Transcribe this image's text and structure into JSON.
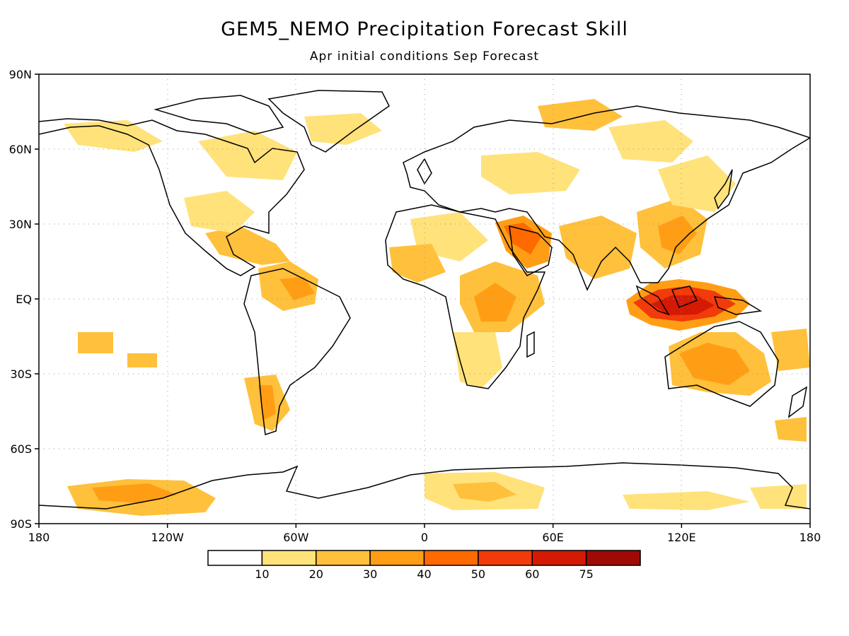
{
  "title": "GEM5_NEMO Precipitation Forecast Skill",
  "subtitle": "Apr initial conditions   Sep Forecast",
  "map": {
    "lat_labels": [
      "90N",
      "60N",
      "30N",
      "EQ",
      "30S",
      "60S",
      "90S"
    ],
    "lat_values": [
      90,
      60,
      30,
      0,
      -30,
      -60,
      -90
    ],
    "lon_labels": [
      "180",
      "120W",
      "60W",
      "0",
      "60E",
      "120E",
      "180"
    ],
    "lon_values": [
      -180,
      -120,
      -60,
      0,
      60,
      120,
      180
    ],
    "lon_range": [
      -180,
      180
    ],
    "lat_range": [
      -90,
      90
    ],
    "projection": "equirectangular",
    "grid": "dotted"
  },
  "colorbar": {
    "thresholds": [
      "10",
      "20",
      "30",
      "40",
      "50",
      "60",
      "75"
    ],
    "colors": [
      "#ffffff",
      "#ffe27a",
      "#ffc03c",
      "#ff9e14",
      "#ff6a00",
      "#f23a0a",
      "#d41a05",
      "#a00a05"
    ]
  }
}
